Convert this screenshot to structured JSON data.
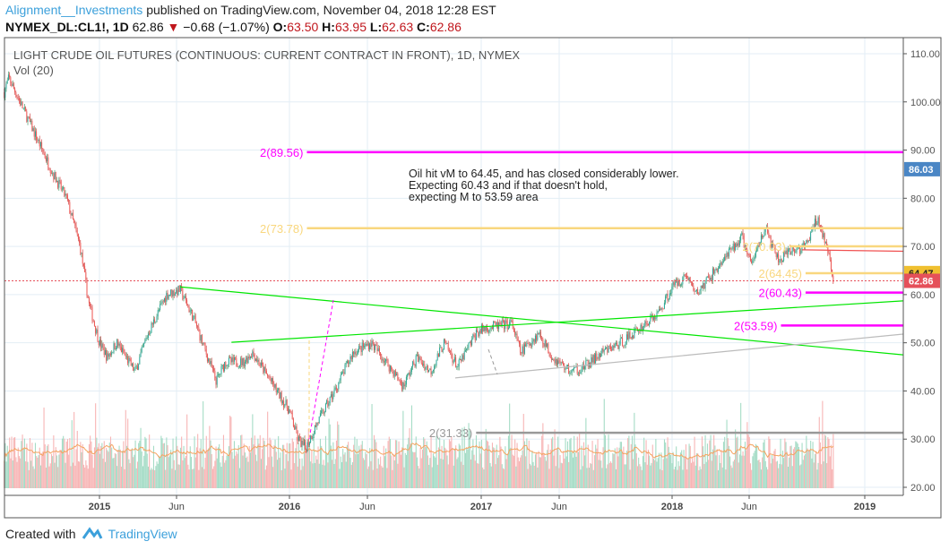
{
  "header": {
    "author": "Alignment__Investments",
    "published": "published on TradingView.com, November 04, 2018 12:28 EST",
    "symbol": "NYMEX_DL:CL1!, 1D",
    "last": "62.86",
    "change": "−0.68 (−1.07%)",
    "o_label": "O:",
    "o": "63.50",
    "h_label": "H:",
    "h": "63.95",
    "l_label": "L:",
    "l": "62.63",
    "c_label": "C:",
    "c": "62.86",
    "down_color": "#c0161c"
  },
  "footer": {
    "created_with": "Created with",
    "brand": "TradingView",
    "logo_icon": "tradingview-logo-icon"
  },
  "chart_data": {
    "type": "candlestick",
    "title": "LIGHT CRUDE OIL FUTURES (CONTINUOUS: CURRENT CONTRACT IN FRONT), 1D, NYMEX",
    "volume_label": "Vol (20)",
    "ylim": [
      18,
      113
    ],
    "y_ticks": [
      "110.00",
      "100.00",
      "90.00",
      "80.00",
      "70.00",
      "60.00",
      "50.00",
      "40.00",
      "30.00",
      "20.00"
    ],
    "x_ticks": [
      "2015",
      "Jun",
      "2016",
      "Jun",
      "2017",
      "Jun",
      "2018",
      "Jun",
      "2019"
    ],
    "grid": true,
    "up_color": "#26a69a",
    "down_color": "#ef5350",
    "closes": [
      [
        "2014-07-03",
        102
      ],
      [
        "2014-07-12",
        105
      ],
      [
        "2014-09-01",
        93
      ],
      [
        "2014-10-05",
        85
      ],
      [
        "2014-10-30",
        80
      ],
      [
        "2014-11-25",
        70
      ],
      [
        "2014-12-12",
        58
      ],
      [
        "2015-01-01",
        50
      ],
      [
        "2015-01-16",
        47
      ],
      [
        "2015-02-03",
        50
      ],
      [
        "2015-03-10",
        44
      ],
      [
        "2015-04-04",
        52
      ],
      [
        "2015-05-09",
        60
      ],
      [
        "2015-06-04",
        61
      ],
      [
        "2015-06-30",
        55
      ],
      [
        "2015-08-12",
        42
      ],
      [
        "2015-08-29",
        46
      ],
      [
        "2015-10-03",
        46
      ],
      [
        "2015-10-20",
        48
      ],
      [
        "2015-11-24",
        42
      ],
      [
        "2015-12-29",
        36
      ],
      [
        "2016-01-15",
        30
      ],
      [
        "2016-01-29",
        28
      ],
      [
        "2016-02-19",
        33
      ],
      [
        "2016-03-25",
        40
      ],
      [
        "2016-04-29",
        48
      ],
      [
        "2016-06-03",
        50
      ],
      [
        "2016-07-08",
        45
      ],
      [
        "2016-08-03",
        41
      ],
      [
        "2016-08-29",
        47
      ],
      [
        "2016-09-24",
        44
      ],
      [
        "2016-10-20",
        50
      ],
      [
        "2016-11-15",
        45
      ],
      [
        "2016-12-20",
        52
      ],
      [
        "2017-01-05",
        53
      ],
      [
        "2017-02-26",
        54
      ],
      [
        "2017-03-15",
        48
      ],
      [
        "2017-04-19",
        52
      ],
      [
        "2017-05-15",
        47
      ],
      [
        "2017-06-19",
        44
      ],
      [
        "2017-07-15",
        45
      ],
      [
        "2017-08-19",
        48
      ],
      [
        "2017-09-23",
        50
      ],
      [
        "2017-10-28",
        53
      ],
      [
        "2017-12-02",
        56
      ],
      [
        "2018-01-01",
        62
      ],
      [
        "2018-01-27",
        64
      ],
      [
        "2018-02-13",
        60
      ],
      [
        "2018-03-29",
        66
      ],
      [
        "2018-05-12",
        72
      ],
      [
        "2018-05-29",
        66
      ],
      [
        "2018-06-24",
        74
      ],
      [
        "2018-07-20",
        67
      ],
      [
        "2018-08-15",
        69
      ],
      [
        "2018-09-10",
        70
      ],
      [
        "2018-10-03",
        76
      ],
      [
        "2018-10-20",
        70
      ],
      [
        "2018-11-02",
        62.86
      ]
    ],
    "levels": [
      {
        "label": "2(89.56)",
        "value": 89.56,
        "color": "#ff00ff",
        "from": "2016-02-01"
      },
      {
        "label": "2(73.78)",
        "value": 73.78,
        "color": "#f9d77e",
        "from": "2016-02-01"
      },
      {
        "label": "2(70.03)",
        "value": 70.03,
        "color": "#f9d77e",
        "from": "2018-08-10"
      },
      {
        "label": "2(64.45)",
        "value": 64.45,
        "color": "#f9d77e",
        "from": "2018-09-10"
      },
      {
        "label": "2(60.43)",
        "value": 60.43,
        "color": "#ff00ff",
        "from": "2018-09-10"
      },
      {
        "label": "2(53.59)",
        "value": 53.59,
        "color": "#ff00ff",
        "from": "2018-07-25"
      },
      {
        "label": "2(31.33)",
        "value": 31.33,
        "color": "#999999",
        "from": "2016-12-20"
      }
    ],
    "trendlines": [
      {
        "color": "#00e600",
        "from": [
          "2015-06-04",
          61.6
        ],
        "to": [
          "2019-03-15",
          47.5
        ]
      },
      {
        "color": "#00e600",
        "from": [
          "2015-09-10",
          50.1
        ],
        "to": [
          "2019-03-15",
          58.7
        ]
      },
      {
        "color": "#bbbbbb",
        "from": [
          "2016-11-10",
          42.7
        ],
        "to": [
          "2019-03-15",
          51.8
        ]
      },
      {
        "color": "#f05050",
        "from": [
          "2018-09-03",
          69.3
        ],
        "to": [
          "2019-03-15",
          69.0
        ]
      }
    ],
    "price_tags": [
      {
        "label": "86.03",
        "value": 86.03,
        "color": "#4a86c5"
      },
      {
        "label": "64.47",
        "value": 64.47,
        "color": "#f0c030"
      },
      {
        "label": "62.86",
        "value": 62.86,
        "color": "#e5505a"
      }
    ],
    "annotation": [
      "Oil hit vM to 64.45, and has closed considerably lower.",
      "Expecting 60.43 and if that doesn't hold,",
      "expecting M to 53.59 area"
    ]
  }
}
